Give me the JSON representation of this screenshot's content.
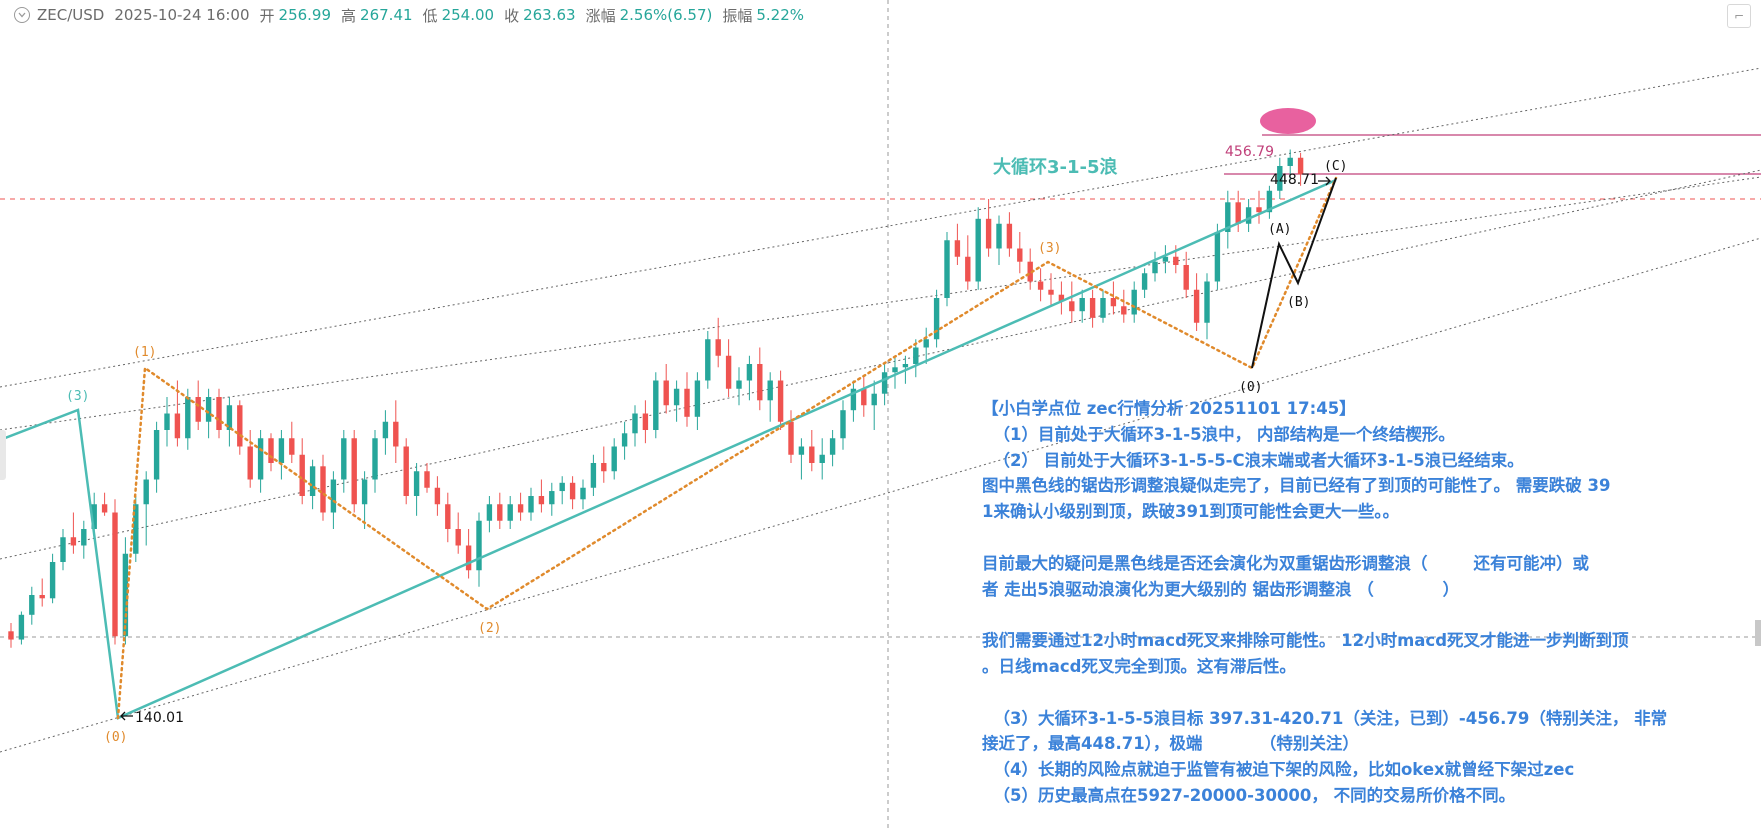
{
  "header": {
    "symbol": "ZEC/USD",
    "datetime": "2025-10-24 16:00",
    "open_label": "开",
    "open": "256.99",
    "high_label": "高",
    "high": "267.41",
    "low_label": "低",
    "low": "254.00",
    "close_label": "收",
    "close": "263.63",
    "change_label": "涨幅",
    "change": "2.56%(6.57)",
    "amp_label": "振幅",
    "amp": "5.22%"
  },
  "colors": {
    "up": "#26a69a",
    "down": "#ef5350",
    "orange": "#e08a2c",
    "teal": "#4cbcb4",
    "note": "#3b82d9",
    "magenta": "#c0407a",
    "red_dash": "#ef5350",
    "wave_black": "#111111"
  },
  "chart_data": {
    "type": "candlestick",
    "ylim": [
      100,
      500
    ],
    "levels": {
      "high_mark": "448.71",
      "low_mark": "140.01",
      "target": "456.79"
    },
    "wave_labels": {
      "w1": "(1)",
      "w2": "(2)",
      "w3": "(3)",
      "w0": "(0)",
      "w3_top": "(3)",
      "wA": "(A)",
      "wB": "(B)",
      "wC": "(C)",
      "w0_black": "(0)"
    },
    "cycle_title": "大循环3-1-5浪",
    "candles": [
      [
        178,
        183,
        168,
        173
      ],
      [
        173,
        190,
        170,
        188
      ],
      [
        188,
        205,
        182,
        200
      ],
      [
        200,
        210,
        193,
        198
      ],
      [
        198,
        225,
        195,
        220
      ],
      [
        220,
        240,
        215,
        235
      ],
      [
        235,
        250,
        225,
        230
      ],
      [
        230,
        245,
        222,
        240
      ],
      [
        240,
        262,
        235,
        255
      ],
      [
        255,
        262,
        248,
        250
      ],
      [
        250,
        258,
        170,
        175
      ],
      [
        175,
        235,
        170,
        225
      ],
      [
        225,
        260,
        220,
        255
      ],
      [
        255,
        275,
        230,
        270
      ],
      [
        270,
        305,
        262,
        300
      ],
      [
        300,
        320,
        290,
        310
      ],
      [
        310,
        330,
        290,
        295
      ],
      [
        295,
        325,
        288,
        320
      ],
      [
        320,
        330,
        300,
        305
      ],
      [
        305,
        325,
        295,
        320
      ],
      [
        320,
        325,
        295,
        300
      ],
      [
        300,
        320,
        290,
        315
      ],
      [
        315,
        318,
        285,
        290
      ],
      [
        290,
        300,
        265,
        270
      ],
      [
        270,
        300,
        262,
        295
      ],
      [
        295,
        298,
        275,
        280
      ],
      [
        280,
        300,
        270,
        295
      ],
      [
        295,
        305,
        280,
        285
      ],
      [
        285,
        295,
        255,
        260
      ],
      [
        260,
        282,
        252,
        278
      ],
      [
        278,
        285,
        245,
        250
      ],
      [
        250,
        275,
        240,
        270
      ],
      [
        270,
        300,
        262,
        295
      ],
      [
        295,
        300,
        250,
        255
      ],
      [
        255,
        275,
        240,
        270
      ],
      [
        270,
        300,
        262,
        295
      ],
      [
        295,
        312,
        285,
        305
      ],
      [
        305,
        318,
        280,
        290
      ],
      [
        290,
        295,
        255,
        260
      ],
      [
        260,
        280,
        248,
        275
      ],
      [
        275,
        280,
        262,
        265
      ],
      [
        265,
        272,
        248,
        255
      ],
      [
        255,
        262,
        232,
        240
      ],
      [
        240,
        250,
        225,
        230
      ],
      [
        230,
        240,
        210,
        215
      ],
      [
        215,
        250,
        205,
        245
      ],
      [
        245,
        260,
        238,
        255
      ],
      [
        255,
        262,
        240,
        245
      ],
      [
        245,
        260,
        240,
        255
      ],
      [
        255,
        262,
        245,
        250
      ],
      [
        250,
        265,
        245,
        260
      ],
      [
        260,
        270,
        250,
        255
      ],
      [
        255,
        268,
        248,
        263
      ],
      [
        263,
        272,
        255,
        268
      ],
      [
        268,
        272,
        252,
        258
      ],
      [
        258,
        270,
        252,
        265
      ],
      [
        265,
        285,
        260,
        280
      ],
      [
        280,
        290,
        268,
        275
      ],
      [
        275,
        295,
        270,
        290
      ],
      [
        290,
        305,
        282,
        298
      ],
      [
        298,
        315,
        290,
        310
      ],
      [
        310,
        318,
        292,
        300
      ],
      [
        300,
        335,
        295,
        330
      ],
      [
        330,
        340,
        310,
        315
      ],
      [
        315,
        330,
        305,
        325
      ],
      [
        325,
        335,
        302,
        308
      ],
      [
        308,
        335,
        300,
        330
      ],
      [
        330,
        360,
        325,
        355
      ],
      [
        355,
        368,
        338,
        345
      ],
      [
        345,
        355,
        320,
        325
      ],
      [
        325,
        338,
        315,
        330
      ],
      [
        330,
        345,
        318,
        340
      ],
      [
        340,
        350,
        312,
        318
      ],
      [
        318,
        335,
        305,
        330
      ],
      [
        330,
        336,
        300,
        305
      ],
      [
        305,
        312,
        280,
        285
      ],
      [
        285,
        295,
        270,
        290
      ],
      [
        290,
        300,
        275,
        280
      ],
      [
        280,
        295,
        270,
        285
      ],
      [
        285,
        300,
        278,
        295
      ],
      [
        295,
        318,
        288,
        312
      ],
      [
        312,
        330,
        305,
        325
      ],
      [
        325,
        332,
        308,
        315
      ],
      [
        315,
        330,
        300,
        322
      ],
      [
        322,
        340,
        315,
        335
      ],
      [
        335,
        345,
        325,
        338
      ],
      [
        338,
        345,
        328,
        340
      ],
      [
        340,
        355,
        332,
        350
      ],
      [
        350,
        362,
        340,
        355
      ],
      [
        355,
        385,
        350,
        380
      ],
      [
        380,
        420,
        375,
        415
      ],
      [
        415,
        425,
        400,
        405
      ],
      [
        405,
        418,
        385,
        390
      ],
      [
        390,
        435,
        385,
        428
      ],
      [
        428,
        440,
        405,
        410
      ],
      [
        410,
        430,
        400,
        425
      ],
      [
        425,
        432,
        405,
        410
      ],
      [
        410,
        420,
        395,
        402
      ],
      [
        402,
        410,
        385,
        390
      ],
      [
        390,
        398,
        378,
        385
      ],
      [
        385,
        395,
        375,
        382
      ],
      [
        382,
        390,
        370,
        378
      ],
      [
        378,
        390,
        365,
        372
      ],
      [
        372,
        385,
        365,
        380
      ],
      [
        380,
        385,
        362,
        368
      ],
      [
        368,
        385,
        365,
        380
      ],
      [
        380,
        390,
        370,
        375
      ],
      [
        375,
        385,
        365,
        370
      ],
      [
        370,
        390,
        365,
        385
      ],
      [
        385,
        398,
        380,
        395
      ],
      [
        395,
        408,
        390,
        402
      ],
      [
        402,
        412,
        395,
        405
      ],
      [
        405,
        412,
        395,
        400
      ],
      [
        400,
        408,
        380,
        385
      ],
      [
        385,
        395,
        360,
        365
      ],
      [
        365,
        395,
        355,
        390
      ],
      [
        390,
        425,
        385,
        420
      ],
      [
        420,
        445,
        410,
        438
      ],
      [
        438,
        445,
        420,
        425
      ],
      [
        425,
        440,
        420,
        435
      ],
      [
        435,
        445,
        425,
        432
      ],
      [
        432,
        448,
        428,
        445
      ],
      [
        445,
        465,
        440,
        460
      ],
      [
        460,
        470,
        452,
        465
      ],
      [
        465,
        468,
        448,
        455
      ]
    ]
  }
}
